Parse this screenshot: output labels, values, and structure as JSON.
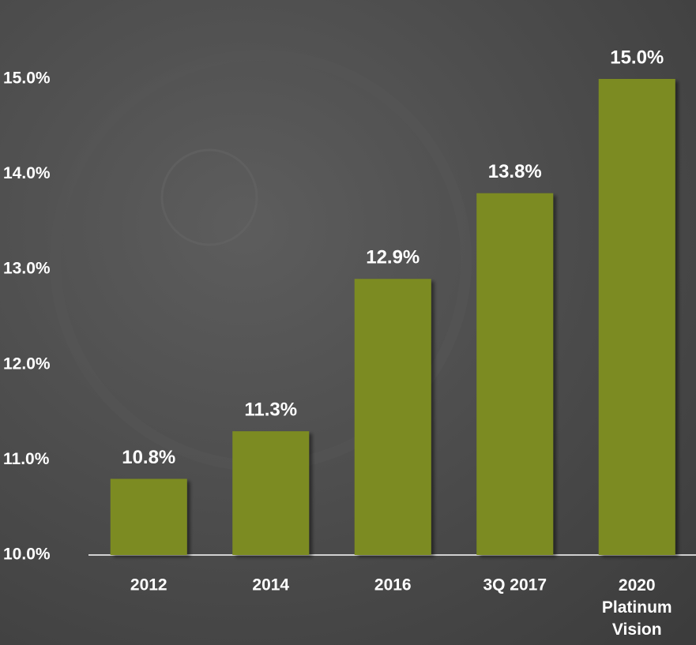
{
  "chart_data": {
    "type": "bar",
    "categories": [
      "2012",
      "2014",
      "2016",
      "3Q 2017",
      "2020\nPlatinum\nVision"
    ],
    "values": [
      10.8,
      11.3,
      12.9,
      13.8,
      15.0
    ],
    "value_labels": [
      "10.8%",
      "11.3%",
      "12.9%",
      "13.8%",
      "15.0%"
    ],
    "color": "#7b8b23",
    "ylim": [
      10,
      15.8
    ],
    "yticks": [
      {
        "value": 10,
        "label": "10.0%"
      },
      {
        "value": 11,
        "label": "11.0%"
      },
      {
        "value": 12,
        "label": "12.0%"
      },
      {
        "value": 13,
        "label": "13.0%"
      },
      {
        "value": 14,
        "label": "14.0%"
      },
      {
        "value": 15,
        "label": "15.0%"
      }
    ],
    "grid": false
  }
}
